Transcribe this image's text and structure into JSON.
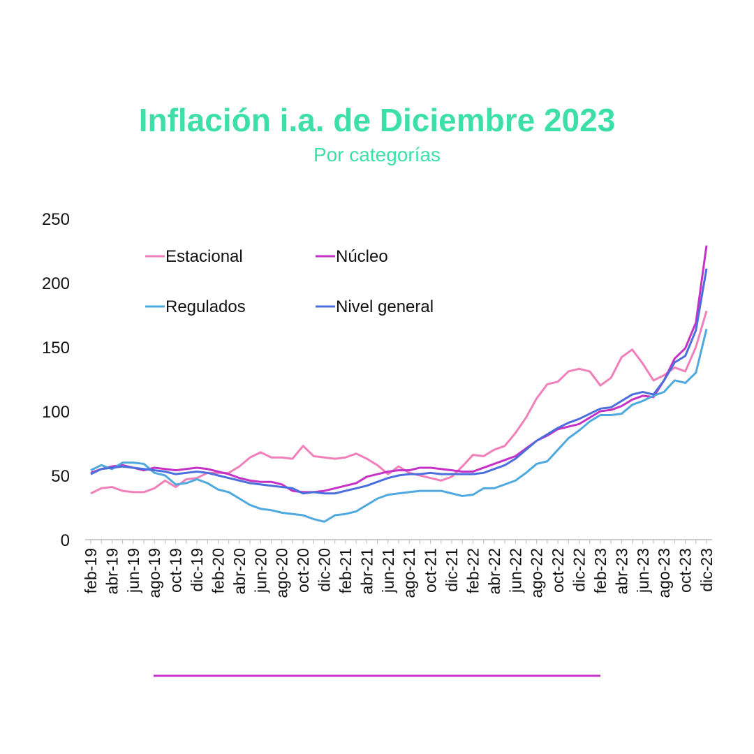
{
  "chart_data": {
    "type": "line",
    "title": "Inflación i.a. de Diciembre 2023",
    "subtitle": "Por categorías",
    "categories": [
      "feb-19",
      null,
      "abr-19",
      null,
      "jun-19",
      null,
      "ago-19",
      null,
      "oct-19",
      null,
      "dic-19",
      null,
      "feb-20",
      null,
      "abr-20",
      null,
      "jun-20",
      null,
      "ago-20",
      null,
      "oct-20",
      null,
      "dic-20",
      null,
      "feb-21",
      null,
      "abr-21",
      null,
      "jun-21",
      null,
      "ago-21",
      null,
      "oct-21",
      null,
      "dic-21",
      null,
      "feb-22",
      null,
      "abr-22",
      null,
      "jun-22",
      null,
      "ago-22",
      null,
      "oct-22",
      null,
      "dic-22",
      null,
      "feb-23",
      null,
      "abr-23",
      null,
      "jun-23",
      null,
      "ago-23",
      null,
      "oct-23",
      null,
      "dic-23"
    ],
    "series": [
      {
        "name": "Estacional",
        "color": "#f07fba",
        "values": [
          36,
          40,
          41,
          38,
          37,
          37,
          40,
          46,
          41,
          47,
          48,
          52,
          52,
          52,
          57,
          64,
          68,
          64,
          64,
          63,
          73,
          65,
          64,
          63,
          64,
          67,
          63,
          58,
          51,
          57,
          52,
          50,
          48,
          46,
          49,
          57,
          66,
          65,
          70,
          73,
          83,
          95,
          110,
          121,
          123,
          131,
          133,
          131,
          120,
          126,
          142,
          148,
          137,
          124,
          128,
          134,
          131,
          150,
          178
        ]
      },
      {
        "name": "Núcleo",
        "color": "#c532c5",
        "values": [
          52,
          55,
          57,
          58,
          56,
          54,
          56,
          55,
          54,
          55,
          56,
          55,
          53,
          51,
          48,
          46,
          45,
          45,
          43,
          38,
          37,
          37,
          38,
          40,
          42,
          44,
          49,
          51,
          53,
          54,
          54,
          56,
          56,
          55,
          54,
          53,
          53,
          56,
          59,
          62,
          65,
          71,
          77,
          81,
          86,
          88,
          90,
          95,
          100,
          101,
          104,
          109,
          112,
          111,
          124,
          141,
          149,
          169,
          229
        ]
      },
      {
        "name": "Regulados",
        "color": "#4fa9de",
        "values": [
          54,
          58,
          55,
          60,
          60,
          59,
          52,
          50,
          43,
          44,
          47,
          44,
          39,
          37,
          32,
          27,
          24,
          23,
          21,
          20,
          19,
          16,
          14,
          19,
          20,
          22,
          27,
          32,
          35,
          36,
          37,
          38,
          38,
          38,
          36,
          34,
          35,
          40,
          40,
          43,
          46,
          52,
          59,
          61,
          70,
          79,
          85,
          92,
          97,
          97,
          98,
          105,
          108,
          112,
          115,
          124,
          122,
          130,
          164
        ]
      },
      {
        "name": "Nivel general",
        "color": "#4a6fdc",
        "values": [
          51,
          55,
          56,
          57,
          56,
          55,
          54,
          53,
          51,
          52,
          53,
          52,
          50,
          48,
          46,
          44,
          43,
          42,
          41,
          40,
          36,
          37,
          36,
          36,
          38,
          40,
          42,
          45,
          48,
          50,
          51,
          51,
          52,
          51,
          51,
          51,
          51,
          52,
          55,
          58,
          63,
          70,
          77,
          82,
          87,
          91,
          94,
          98,
          102,
          103,
          108,
          113,
          115,
          113,
          124,
          138,
          143,
          163,
          211
        ]
      }
    ],
    "ylim": [
      0,
      250
    ],
    "yticks": [
      0,
      50,
      100,
      150,
      200,
      250
    ],
    "grid": false
  }
}
